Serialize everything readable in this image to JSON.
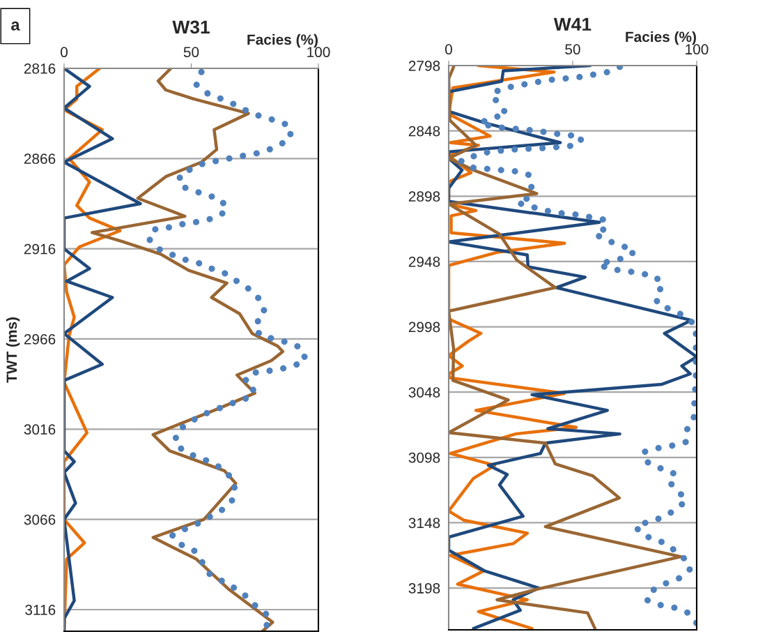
{
  "chart_data": [
    {
      "type": "line",
      "orientation": "horizontal",
      "title": "W31",
      "xlabel": "Facies (%)",
      "ylabel": "TWT (ms)",
      "annotations": [
        "a"
      ],
      "xlim": [
        0,
        100
      ],
      "xticks": [
        0,
        50,
        100
      ],
      "ylim": [
        3128,
        2816
      ],
      "yticks": [
        2816,
        2866,
        2916,
        2966,
        3016,
        3066,
        3116
      ],
      "grid": "y",
      "series": [
        {
          "color": "#e8700a",
          "x": [
            2816,
            2826,
            2833,
            2839,
            2850,
            2866,
            2879,
            2892,
            2899,
            2906,
            2915,
            2925,
            2940,
            2954,
            2964,
            2990,
            3018,
            3034,
            3066,
            3079,
            3088,
            3128
          ],
          "values": [
            14,
            5,
            5,
            0,
            15,
            2,
            10,
            5,
            10,
            22,
            6,
            0,
            1,
            4,
            2,
            0,
            9,
            0,
            0,
            8,
            1,
            0
          ]
        },
        {
          "color": "#1f497d",
          "x": [
            2816,
            2826,
            2838,
            2855,
            2868,
            2891,
            2899,
            2916,
            2927,
            2934,
            2943,
            2963,
            2980,
            2989,
            3028,
            3034,
            3040,
            3057,
            3066,
            3111,
            3121,
            3128
          ],
          "values": [
            0,
            10,
            0,
            19,
            0,
            30,
            0,
            0,
            10,
            1,
            19,
            0,
            15,
            0,
            0,
            4,
            0,
            4.5,
            0,
            4,
            0,
            0
          ]
        },
        {
          "color": "#996633",
          "x": [
            2816,
            2823,
            2828,
            2833,
            2841,
            2850,
            2861,
            2868,
            2876,
            2888,
            2898,
            2905,
            2907,
            2912,
            2919,
            2928,
            2935,
            2943,
            2952,
            2963,
            2970,
            2973,
            2978,
            2986,
            2996,
            3005,
            3019,
            3028,
            3039,
            3046,
            3066,
            3076,
            3088,
            3105,
            3123,
            3128
          ],
          "values": [
            42,
            37,
            40,
            51,
            72.5,
            59,
            60,
            54,
            40,
            29,
            47.5,
            19.5,
            11,
            23,
            38,
            49,
            64,
            58,
            69,
            74,
            84,
            86,
            81.5,
            68,
            75,
            60,
            35,
            41.5,
            63,
            67.5,
            55,
            35,
            52,
            65,
            82,
            78
          ]
        },
        {
          "color": "#4f81bd",
          "line_style": "dotted",
          "x": [
            2818,
            2825,
            2830,
            2833,
            2836,
            2840,
            2843,
            2845,
            2848,
            2855,
            2859,
            2862,
            2864,
            2865,
            2867,
            2868,
            2871,
            2875,
            2881,
            2884,
            2886,
            2889,
            2895,
            2899,
            2901,
            2902,
            2904,
            2905,
            2910,
            2916,
            2919,
            2922,
            2924,
            2927,
            2930,
            2935,
            2939,
            2945,
            2952,
            2958,
            2964,
            2966,
            2968,
            2971,
            2978,
            2981,
            2983,
            2984,
            2985,
            2990,
            2995,
            3000,
            3002,
            3005,
            3008,
            3012,
            3017,
            3024,
            3029,
            3032,
            3035,
            3040,
            3046,
            3054,
            3060,
            3064,
            3068,
            3071,
            3075,
            3080,
            3083,
            3089,
            3096,
            3100,
            3104,
            3109,
            3115,
            3120,
            3127
          ],
          "values": [
            54,
            52,
            56.5,
            62,
            67,
            72.5,
            78,
            83.5,
            89,
            89,
            84,
            79,
            73,
            67.5,
            62,
            56,
            51,
            45.5,
            45.5,
            51,
            56,
            62,
            64,
            59,
            53,
            47.5,
            42,
            36,
            33,
            37,
            42,
            47.5,
            53,
            58,
            64,
            69,
            73.5,
            77.5,
            79,
            75,
            77,
            82.5,
            88,
            93.5,
            95,
            90,
            84,
            78.5,
            73,
            71,
            75,
            70.5,
            65,
            60,
            54.5,
            49.5,
            44.5,
            43.5,
            48,
            53.5,
            59,
            64,
            67,
            67,
            63,
            58,
            53,
            48,
            42.5,
            46,
            51,
            54,
            57,
            62,
            67,
            72,
            76,
            81,
            79
          ]
        }
      ]
    },
    {
      "type": "line",
      "orientation": "horizontal",
      "title": "W41",
      "xlabel": "Facies (%)",
      "xlim": [
        0,
        100
      ],
      "xticks": [
        0,
        50,
        100
      ],
      "ylim": [
        3230,
        2798
      ],
      "yticks": [
        2798,
        2848,
        2898,
        2948,
        2998,
        3048,
        3098,
        3148,
        3198
      ],
      "grid": "y",
      "series": [
        {
          "color": "#e8700a",
          "x": [
            2798,
            2803,
            2815,
            2835,
            2852,
            2857,
            2859,
            2867,
            2880,
            2887,
            2904,
            2909,
            2913,
            2926,
            2934,
            2941,
            2951,
            2992,
            3003,
            3009,
            3020,
            3028,
            3034,
            3037,
            3049,
            3062,
            3075,
            3080,
            3095,
            3104,
            3114,
            3139,
            3146,
            3156,
            3164,
            3173,
            3185,
            3195,
            3207,
            3216,
            3229
          ],
          "values": [
            12,
            42.5,
            1.7,
            0,
            16.7,
            0.7,
            12,
            0,
            9,
            0,
            0,
            11,
            1,
            1,
            46.7,
            19.5,
            0,
            0,
            13,
            8,
            0,
            5.5,
            0,
            0.5,
            46.7,
            11,
            51.4,
            27,
            0.7,
            18.6,
            10,
            0,
            6,
            31.7,
            26,
            0.7,
            14,
            3.6,
            31.7,
            12,
            33.6
          ]
        },
        {
          "color": "#1f497d",
          "x": [
            2798,
            2802,
            2810,
            2818,
            2833,
            2842,
            2857,
            2864,
            2869,
            2878,
            2892,
            2902,
            2918,
            2933,
            2943,
            2952,
            2960,
            2968,
            2993,
            3003,
            3011,
            3021,
            3028,
            3034,
            3042,
            3050,
            3062,
            3076,
            3080,
            3087,
            3095,
            3104,
            3111,
            3119,
            3143,
            3159,
            3169,
            3185,
            3198,
            3207,
            3215,
            3229
          ],
          "values": [
            57,
            22,
            21.4,
            0,
            0,
            14.8,
            45,
            0,
            0,
            5.4,
            0,
            0,
            60.8,
            0,
            31.7,
            32,
            55,
            43.4,
            97.8,
            87,
            92.7,
            100,
            94,
            97.4,
            86,
            33.6,
            64,
            40,
            69,
            39,
            37,
            16,
            23.6,
            20.5,
            30,
            0,
            0,
            14.6,
            36.4,
            26,
            28.9,
            10
          ]
        },
        {
          "color": "#996633",
          "x": [
            2799,
            2808,
            2840,
            2859,
            2869,
            2878,
            2896,
            2904,
            2927,
            2947,
            2968,
            2986,
            3015,
            3039,
            3054,
            3079,
            3087,
            3103,
            3112,
            3129,
            3151,
            3174,
            3199,
            3207,
            3217,
            3229
          ],
          "values": [
            2,
            0,
            0.5,
            11,
            0,
            10,
            35.5,
            0,
            20.5,
            27.5,
            43,
            0,
            2,
            1.7,
            24,
            0,
            39,
            43,
            58,
            68.8,
            39,
            93.6,
            35.5,
            19.5,
            56,
            59
          ]
        },
        {
          "color": "#4f81bd",
          "line_style": "dotted",
          "x": [
            2799,
            2803,
            2805,
            2807,
            2808,
            2809,
            2811,
            2813,
            2815,
            2819,
            2828,
            2835,
            2838,
            2842,
            2845,
            2846,
            2847,
            2848,
            2850,
            2851,
            2853,
            2859,
            2860,
            2861,
            2861.5,
            2862,
            2863,
            2864,
            2867,
            2871,
            2876,
            2877,
            2878,
            2879,
            2882,
            2892,
            2899,
            2903,
            2906,
            2909,
            2911,
            2912,
            2914,
            2916,
            2922,
            2927,
            2932,
            2936,
            2940,
            2945,
            2947,
            2950,
            2954,
            2955,
            2957,
            2959,
            2966,
            2974,
            2981,
            2985,
            2990,
            2997,
            3007,
            3026,
            3036,
            3059,
            3069,
            3077,
            3086,
            3089,
            3091,
            3094,
            3101,
            3106,
            3110,
            3116,
            3123,
            3131,
            3138,
            3144,
            3147,
            3151,
            3158,
            3161,
            3167,
            3174,
            3183,
            3190,
            3194,
            3199,
            3207,
            3211,
            3213,
            3217,
            3225
          ],
          "values": [
            69,
            64,
            58,
            52,
            46.4,
            40.6,
            34.5,
            28.7,
            23,
            17.5,
            20,
            23.5,
            17.8,
            12.5,
            18.3,
            24.2,
            30.3,
            36,
            42,
            48,
            53.8,
            52,
            46,
            40,
            34,
            28,
            22,
            16.3,
            10.6,
            5,
            9,
            15,
            21,
            27,
            33,
            33.4,
            32.6,
            27.7,
            33.4,
            39,
            45,
            51,
            57,
            62.7,
            63.8,
            59,
            64,
            70,
            75,
            72,
            66.4,
            60.6,
            65,
            71,
            77,
            83,
            86.6,
            83.3,
            84.4,
            90,
            95.3,
            99.7,
            99.7,
            99.7,
            99.7,
            99,
            98.8,
            96,
            96,
            90,
            84,
            78.4,
            79.5,
            85,
            90.6,
            88.5,
            92.2,
            95.8,
            91.5,
            86.3,
            80.7,
            75.3,
            78.6,
            84.4,
            89.6,
            94.4,
            97.6,
            93.6,
            88,
            82.8,
            79.7,
            85.3,
            91,
            96.6,
            100
          ]
        }
      ]
    }
  ]
}
